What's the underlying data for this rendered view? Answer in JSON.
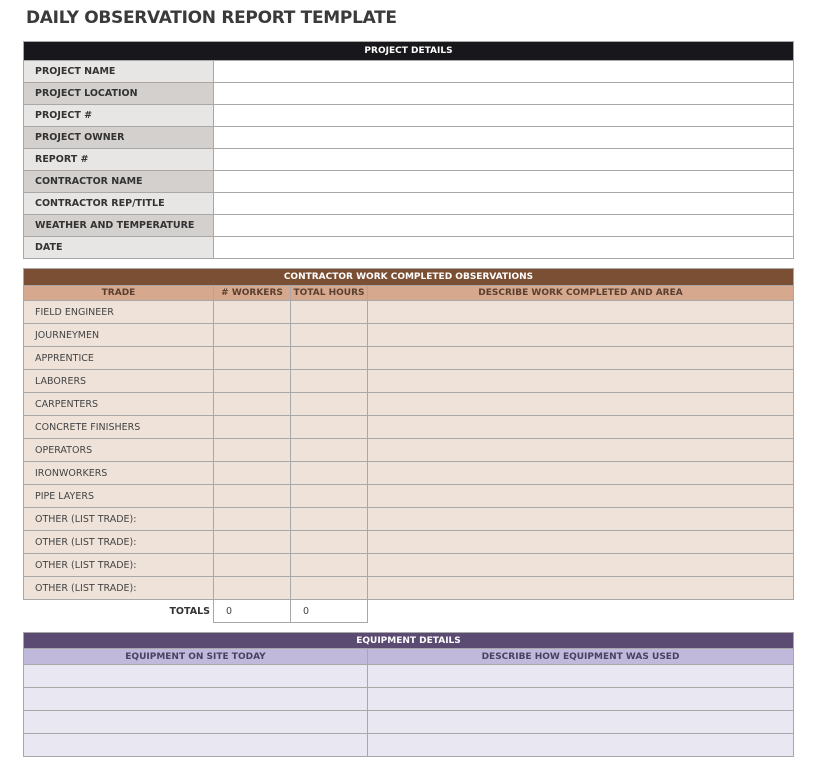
{
  "title": "DAILY OBSERVATION REPORT TEMPLATE",
  "project_details": {
    "header": "PROJECT DETAILS",
    "fields": [
      "PROJECT NAME",
      "PROJECT LOCATION",
      "PROJECT #",
      "PROJECT OWNER",
      "REPORT #",
      "CONTRACTOR NAME",
      "CONTRACTOR REP/TITLE",
      "WEATHER AND TEMPERATURE",
      "DATE"
    ]
  },
  "contractor": {
    "header": "CONTRACTOR WORK COMPLETED OBSERVATIONS",
    "columns": [
      "TRADE",
      "# WORKERS",
      "TOTAL HOURS",
      "DESCRIBE WORK COMPLETED AND AREA"
    ],
    "trades": [
      "FIELD ENGINEER",
      "JOURNEYMEN",
      "APPRENTICE",
      "LABORERS",
      "CARPENTERS",
      "CONCRETE FINISHERS",
      "OPERATORS",
      "IRONWORKERS",
      "PIPE LAYERS",
      "OTHER (LIST TRADE):",
      "OTHER (LIST TRADE):",
      "OTHER (LIST TRADE):",
      "OTHER (LIST TRADE):"
    ],
    "totals_label": "TOTALS",
    "total_workers": "0",
    "total_hours": "0"
  },
  "equipment": {
    "header": "EQUIPMENT DETAILS",
    "columns": [
      "EQUIPMENT ON SITE TODAY",
      "DESCRIBE HOW EQUIPMENT WAS USED"
    ]
  },
  "colors": {
    "project_header": "#18171c",
    "contractor_header": "#7b4f33",
    "contractor_sub": "#d6a88e",
    "equipment_header": "#5b4a72",
    "equipment_sub": "#c1b9dc"
  }
}
